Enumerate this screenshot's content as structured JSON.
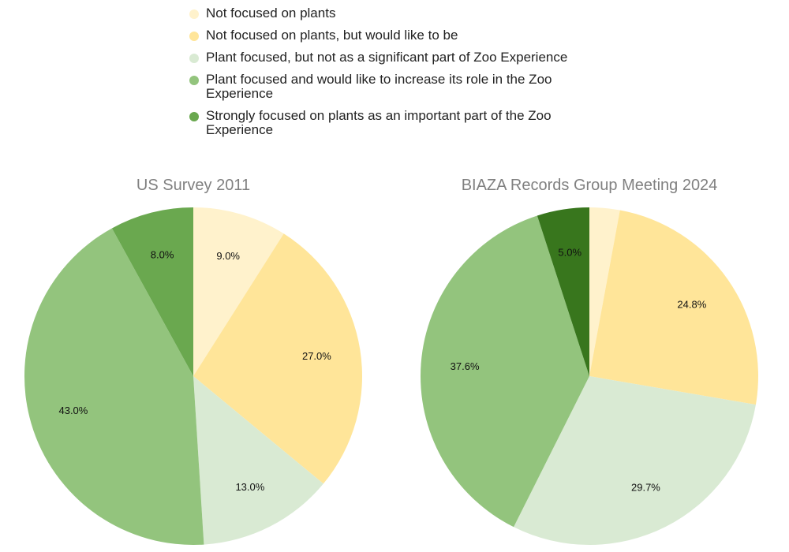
{
  "legend": [
    {
      "label": "Not focused on plants",
      "color": "#fff2cc"
    },
    {
      "label": "Not focused on plants, but would like to be",
      "color": "#ffe599"
    },
    {
      "label": "Plant focused, but not as a significant part of Zoo Experience",
      "color": "#d9ead3"
    },
    {
      "label": "Plant focused and would like to increase its role in the Zoo Experience",
      "color": "#93c47d"
    },
    {
      "label": "Strongly focused on plants as an important part of the Zoo Experience",
      "color": "#6aa84f"
    }
  ],
  "chart_data": [
    {
      "type": "pie",
      "title": "US Survey 2011",
      "labels": [
        "Not focused on plants",
        "Not focused on plants, but would like to be",
        "Plant focused, but not as a significant part of Zoo Experience",
        "Plant focused and would like to increase its role in the Zoo Experience",
        "Strongly focused on plants as an important part of the Zoo Experience"
      ],
      "values": [
        9.0,
        27.0,
        13.0,
        43.0,
        8.0
      ],
      "data_labels": [
        "9.0%",
        "27.0%",
        "13.0%",
        "43.0%",
        "8.0%"
      ],
      "colors": [
        "#fff2cc",
        "#ffe599",
        "#d9ead3",
        "#93c47d",
        "#6aa84f"
      ],
      "start_angle": "12 o'clock",
      "direction": "clockwise"
    },
    {
      "type": "pie",
      "title": "BIAZA Records Group Meeting 2024",
      "labels": [
        "Not focused on plants",
        "Not focused on plants, but would like to be",
        "Plant focused, but not as a significant part of Zoo Experience",
        "Plant focused and would like to increase its role in the Zoo Experience",
        "Strongly focused on plants as an important part of the Zoo Experience"
      ],
      "values": [
        2.9,
        24.8,
        29.7,
        37.6,
        5.0
      ],
      "data_labels": [
        "",
        "24.8%",
        "29.7%",
        "37.6%",
        "5.0%"
      ],
      "colors": [
        "#fff2cc",
        "#ffe599",
        "#d9ead3",
        "#93c47d",
        "#38761d"
      ],
      "start_angle": "12 o'clock",
      "direction": "clockwise"
    }
  ]
}
